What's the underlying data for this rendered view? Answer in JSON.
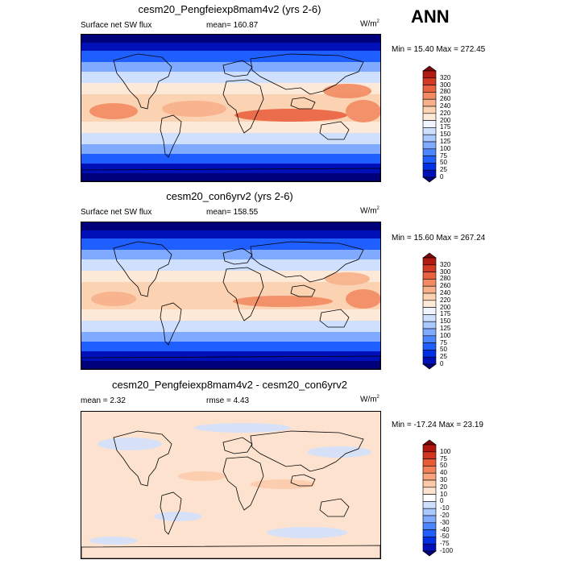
{
  "season": "ANN",
  "colors": {
    "abs_levels": [
      "#00007a",
      "#0010b8",
      "#0030e6",
      "#1f5fff",
      "#4a86ff",
      "#7faaff",
      "#a8c8ff",
      "#cfe0ff",
      "#f0f4ff",
      "#fde9d8",
      "#fbd2b2",
      "#f7b08a",
      "#f28b62",
      "#e9623f",
      "#d43a22",
      "#b01a10",
      "#7a0a0a"
    ],
    "diff_levels": [
      "#00007a",
      "#0010b8",
      "#0030e6",
      "#1f5fff",
      "#4a86ff",
      "#7faaff",
      "#a8c8ff",
      "#cfe0ff",
      "#ffffff",
      "#fde3cf",
      "#fbc9a8",
      "#f7a47f",
      "#f28058",
      "#e85b37",
      "#d23620",
      "#b0160e",
      "#7a0606"
    ]
  },
  "panels": [
    {
      "title": "cesm20_Pengfeiexp8mam4v2 (yrs 2-6)",
      "variable": "Surface net SW flux",
      "mean_text": "mean= 160.87",
      "units": "W/m",
      "units_sup": "2",
      "minmax": "Min =  15.40 Max = 272.45",
      "colorbar_labels": [
        "320",
        "300",
        "280",
        "260",
        "240",
        "220",
        "200",
        "175",
        "150",
        "125",
        "100",
        "75",
        "50",
        "25",
        "0"
      ]
    },
    {
      "title": "cesm20_con6yrv2 (yrs 2-6)",
      "variable": "Surface net SW flux",
      "mean_text": "mean= 158.55",
      "units": "W/m",
      "units_sup": "2",
      "minmax": "Min =  15.60 Max = 267.24",
      "colorbar_labels": [
        "320",
        "300",
        "280",
        "260",
        "240",
        "220",
        "200",
        "175",
        "150",
        "125",
        "100",
        "75",
        "50",
        "25",
        "0"
      ]
    },
    {
      "title": "cesm20_Pengfeiexp8mam4v2 - cesm20_con6yrv2",
      "mean_text": "mean =   2.32",
      "rmse_text": "rmse =   4.43",
      "units": "W/m",
      "units_sup": "2",
      "minmax": "Min = -17.24 Max =  23.19",
      "colorbar_labels": [
        "100",
        "75",
        "50",
        "40",
        "30",
        "20",
        "10",
        "0",
        "-10",
        "-20",
        "-30",
        "-40",
        "-50",
        "-75",
        "-100"
      ]
    }
  ]
}
